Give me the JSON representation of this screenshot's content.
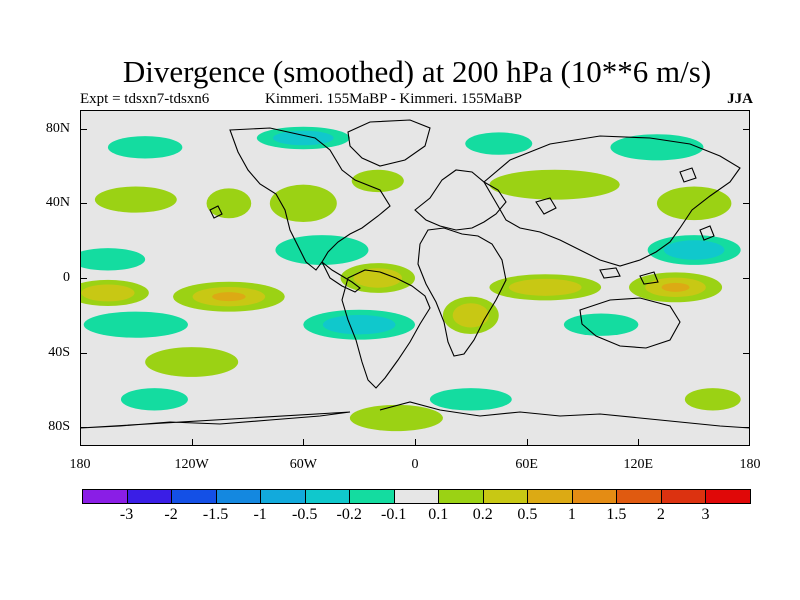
{
  "title": "Divergence (smoothed) at 200 hPa (10**6 m/s)",
  "experiment": "Expt = tdsxn7-tdsxn6",
  "subtitle": "Kimmeri. 155MaBP - Kimmeri. 155MaBP",
  "season": "JJA",
  "y_axis": {
    "ticks": [
      "80N",
      "40N",
      "0",
      "40S",
      "80S"
    ],
    "values": [
      80,
      40,
      0,
      -40,
      -80
    ]
  },
  "x_axis": {
    "ticks": [
      "180",
      "120W",
      "60W",
      "0",
      "60E",
      "120E",
      "180"
    ],
    "values": [
      -180,
      -120,
      -60,
      0,
      60,
      120,
      180
    ]
  },
  "colorbar": {
    "labels": [
      "-3",
      "-2",
      "-1.5",
      "-1",
      "-0.5",
      "-0.2",
      "-0.1",
      "0.1",
      "0.2",
      "0.5",
      "1",
      "1.5",
      "2",
      "3"
    ],
    "colors": [
      "#8a1ee6",
      "#3a1ee6",
      "#1450e6",
      "#1488e0",
      "#12aadc",
      "#10c8cc",
      "#14dca0",
      "#e6e6e6",
      "#9bd214",
      "#c8c814",
      "#dcaa14",
      "#e48c14",
      "#e05a10",
      "#dc3210",
      "#e00808"
    ]
  },
  "map_data": {
    "lon_range": [
      -180,
      180
    ],
    "lat_range": [
      -90,
      90
    ],
    "positive_regions": [
      {
        "lon": -150,
        "lat": 42,
        "rx": 22,
        "ry": 7,
        "level": 1
      },
      {
        "lon": -100,
        "lat": 40,
        "rx": 12,
        "ry": 8,
        "level": 1
      },
      {
        "lon": -60,
        "lat": 40,
        "rx": 18,
        "ry": 10,
        "level": 1
      },
      {
        "lon": -20,
        "lat": 52,
        "rx": 14,
        "ry": 6,
        "level": 1
      },
      {
        "lon": 75,
        "lat": 50,
        "rx": 35,
        "ry": 8,
        "level": 1
      },
      {
        "lon": 150,
        "lat": 40,
        "rx": 20,
        "ry": 9,
        "level": 1
      },
      {
        "lon": -165,
        "lat": -8,
        "rx": 22,
        "ry": 7,
        "level": 2
      },
      {
        "lon": -100,
        "lat": -10,
        "rx": 30,
        "ry": 8,
        "level": 3
      },
      {
        "lon": -20,
        "lat": 0,
        "rx": 20,
        "ry": 8,
        "level": 2
      },
      {
        "lon": 70,
        "lat": -5,
        "rx": 30,
        "ry": 7,
        "level": 2
      },
      {
        "lon": 140,
        "lat": -5,
        "rx": 25,
        "ry": 8,
        "level": 3
      },
      {
        "lon": -120,
        "lat": -45,
        "rx": 25,
        "ry": 8,
        "level": 1
      },
      {
        "lon": 30,
        "lat": -20,
        "rx": 15,
        "ry": 10,
        "level": 2
      },
      {
        "lon": -10,
        "lat": -75,
        "rx": 25,
        "ry": 7,
        "level": 1
      },
      {
        "lon": 160,
        "lat": -65,
        "rx": 15,
        "ry": 6,
        "level": 1
      }
    ],
    "negative_regions": [
      {
        "lon": -145,
        "lat": 70,
        "rx": 20,
        "ry": 6,
        "level": 1
      },
      {
        "lon": -60,
        "lat": 75,
        "rx": 25,
        "ry": 6,
        "level": 2
      },
      {
        "lon": 45,
        "lat": 72,
        "rx": 18,
        "ry": 6,
        "level": 1
      },
      {
        "lon": 130,
        "lat": 70,
        "rx": 25,
        "ry": 7,
        "level": 1
      },
      {
        "lon": -165,
        "lat": 10,
        "rx": 20,
        "ry": 6,
        "level": 1
      },
      {
        "lon": -50,
        "lat": 15,
        "rx": 25,
        "ry": 8,
        "level": 1
      },
      {
        "lon": 150,
        "lat": 15,
        "rx": 25,
        "ry": 8,
        "level": 2
      },
      {
        "lon": -150,
        "lat": -25,
        "rx": 28,
        "ry": 7,
        "level": 1
      },
      {
        "lon": -30,
        "lat": -25,
        "rx": 30,
        "ry": 8,
        "level": 2
      },
      {
        "lon": 100,
        "lat": -25,
        "rx": 20,
        "ry": 6,
        "level": 1
      },
      {
        "lon": -140,
        "lat": -65,
        "rx": 18,
        "ry": 6,
        "level": 1
      },
      {
        "lon": 30,
        "lat": -65,
        "rx": 22,
        "ry": 6,
        "level": 1
      }
    ]
  }
}
